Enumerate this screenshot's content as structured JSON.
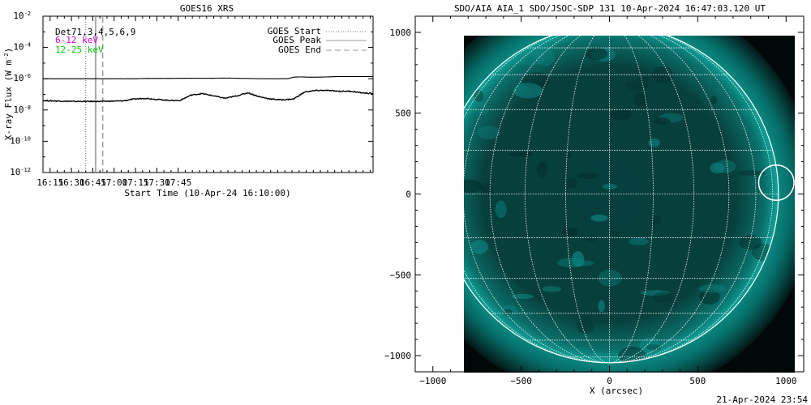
{
  "footer_timestamp": "21-Apr-2024 23:54",
  "chart_data": [
    {
      "type": "line",
      "title": "GOES16 XRS",
      "xlabel": "Start Time (10-Apr-24 16:10:00)",
      "ylabel": "X-ray Flux (W m",
      "ylabel_exp": "-2",
      "ylabel_end": ")",
      "log_y": true,
      "ylim_exp": [
        -12,
        -2
      ],
      "ytick_exps": [
        "-2",
        "-4",
        "-6",
        "-8",
        "-10",
        "-12"
      ],
      "xlim_min": [
        0,
        232
      ],
      "xtick_minutes": [
        5,
        20,
        35,
        50,
        65,
        80,
        95
      ],
      "xtick_labels": [
        "16:15",
        "16:30",
        "16:45",
        "17:00",
        "17:15",
        "17:30",
        "17:45"
      ],
      "legend_left": [
        {
          "label": "Det71,3,4,5,6,9",
          "color": "#000000"
        },
        {
          "label": "6-12 keV",
          "color": "#d000d0"
        },
        {
          "label": "12-25 keV",
          "color": "#00c800"
        }
      ],
      "legend_right": [
        {
          "label": "GOES Start",
          "style": "dotted",
          "minute": 30
        },
        {
          "label": "GOES Peak",
          "style": "solid",
          "minute": 37
        },
        {
          "label": "GOES End",
          "style": "dashed",
          "minute": 42
        }
      ],
      "series": [
        {
          "color": "#000000",
          "x": [
            0,
            20,
            40,
            56,
            60,
            64,
            68,
            72,
            80,
            88,
            100,
            112,
            120,
            124,
            128,
            132,
            136,
            140,
            144,
            148,
            152,
            156,
            160,
            164,
            168,
            172,
            176,
            180,
            184,
            188,
            192,
            196,
            200,
            204,
            208,
            212,
            216,
            220,
            232
          ],
          "log10": [
            -6.0,
            -6.0,
            -6.0,
            -6.0,
            -6.0,
            -6.0,
            -5.99,
            -5.98,
            -5.98,
            -5.98,
            -5.97,
            -5.97,
            -5.97,
            -5.96,
            -5.96,
            -5.96,
            -5.97,
            -5.98,
            -5.98,
            -5.99,
            -6.0,
            -6.0,
            -6.0,
            -6.0,
            -6.0,
            -6.0,
            -5.9,
            -5.88,
            -5.89,
            -5.9,
            -5.9,
            -5.89,
            -5.88,
            -5.87,
            -5.86,
            -5.86,
            -5.86,
            -5.86,
            -5.86
          ]
        },
        {
          "color": "#000000",
          "x": [
            0,
            20,
            40,
            56,
            64,
            72,
            80,
            88,
            96,
            104,
            112,
            120,
            128,
            136,
            144,
            152,
            160,
            168,
            176,
            184,
            192,
            200,
            208,
            216,
            224,
            232
          ],
          "log10": [
            -7.4,
            -7.45,
            -7.45,
            -7.42,
            -7.3,
            -7.25,
            -7.32,
            -7.38,
            -7.4,
            -7.05,
            -6.95,
            -7.1,
            -7.25,
            -7.1,
            -6.9,
            -7.15,
            -7.3,
            -7.35,
            -7.3,
            -6.85,
            -6.75,
            -6.75,
            -6.8,
            -6.8,
            -6.9,
            -6.95
          ]
        }
      ]
    },
    {
      "type": "heatmap",
      "title": "SDO/AIA AIA_1 SDO/JSOC-SDP 131 10-Apr-2024 16:47:03.120 UT",
      "xlabel": "X (arcsec)",
      "ylabel": "",
      "xlim": [
        -1100,
        1100
      ],
      "ylim": [
        -1100,
        1100
      ],
      "xticks": [
        -1000,
        -500,
        0,
        500,
        1000
      ],
      "yticks": [
        -1000,
        -500,
        0,
        500,
        1000
      ],
      "solar_radius_arcsec": 957,
      "highlight_circle": {
        "x": 945,
        "y": 70,
        "r": 100
      },
      "colors": {
        "limb": "#0a9e96",
        "disk_core": "#063f3d",
        "disk_mid": "#0a6e69",
        "grid": "#ffffff"
      }
    }
  ]
}
